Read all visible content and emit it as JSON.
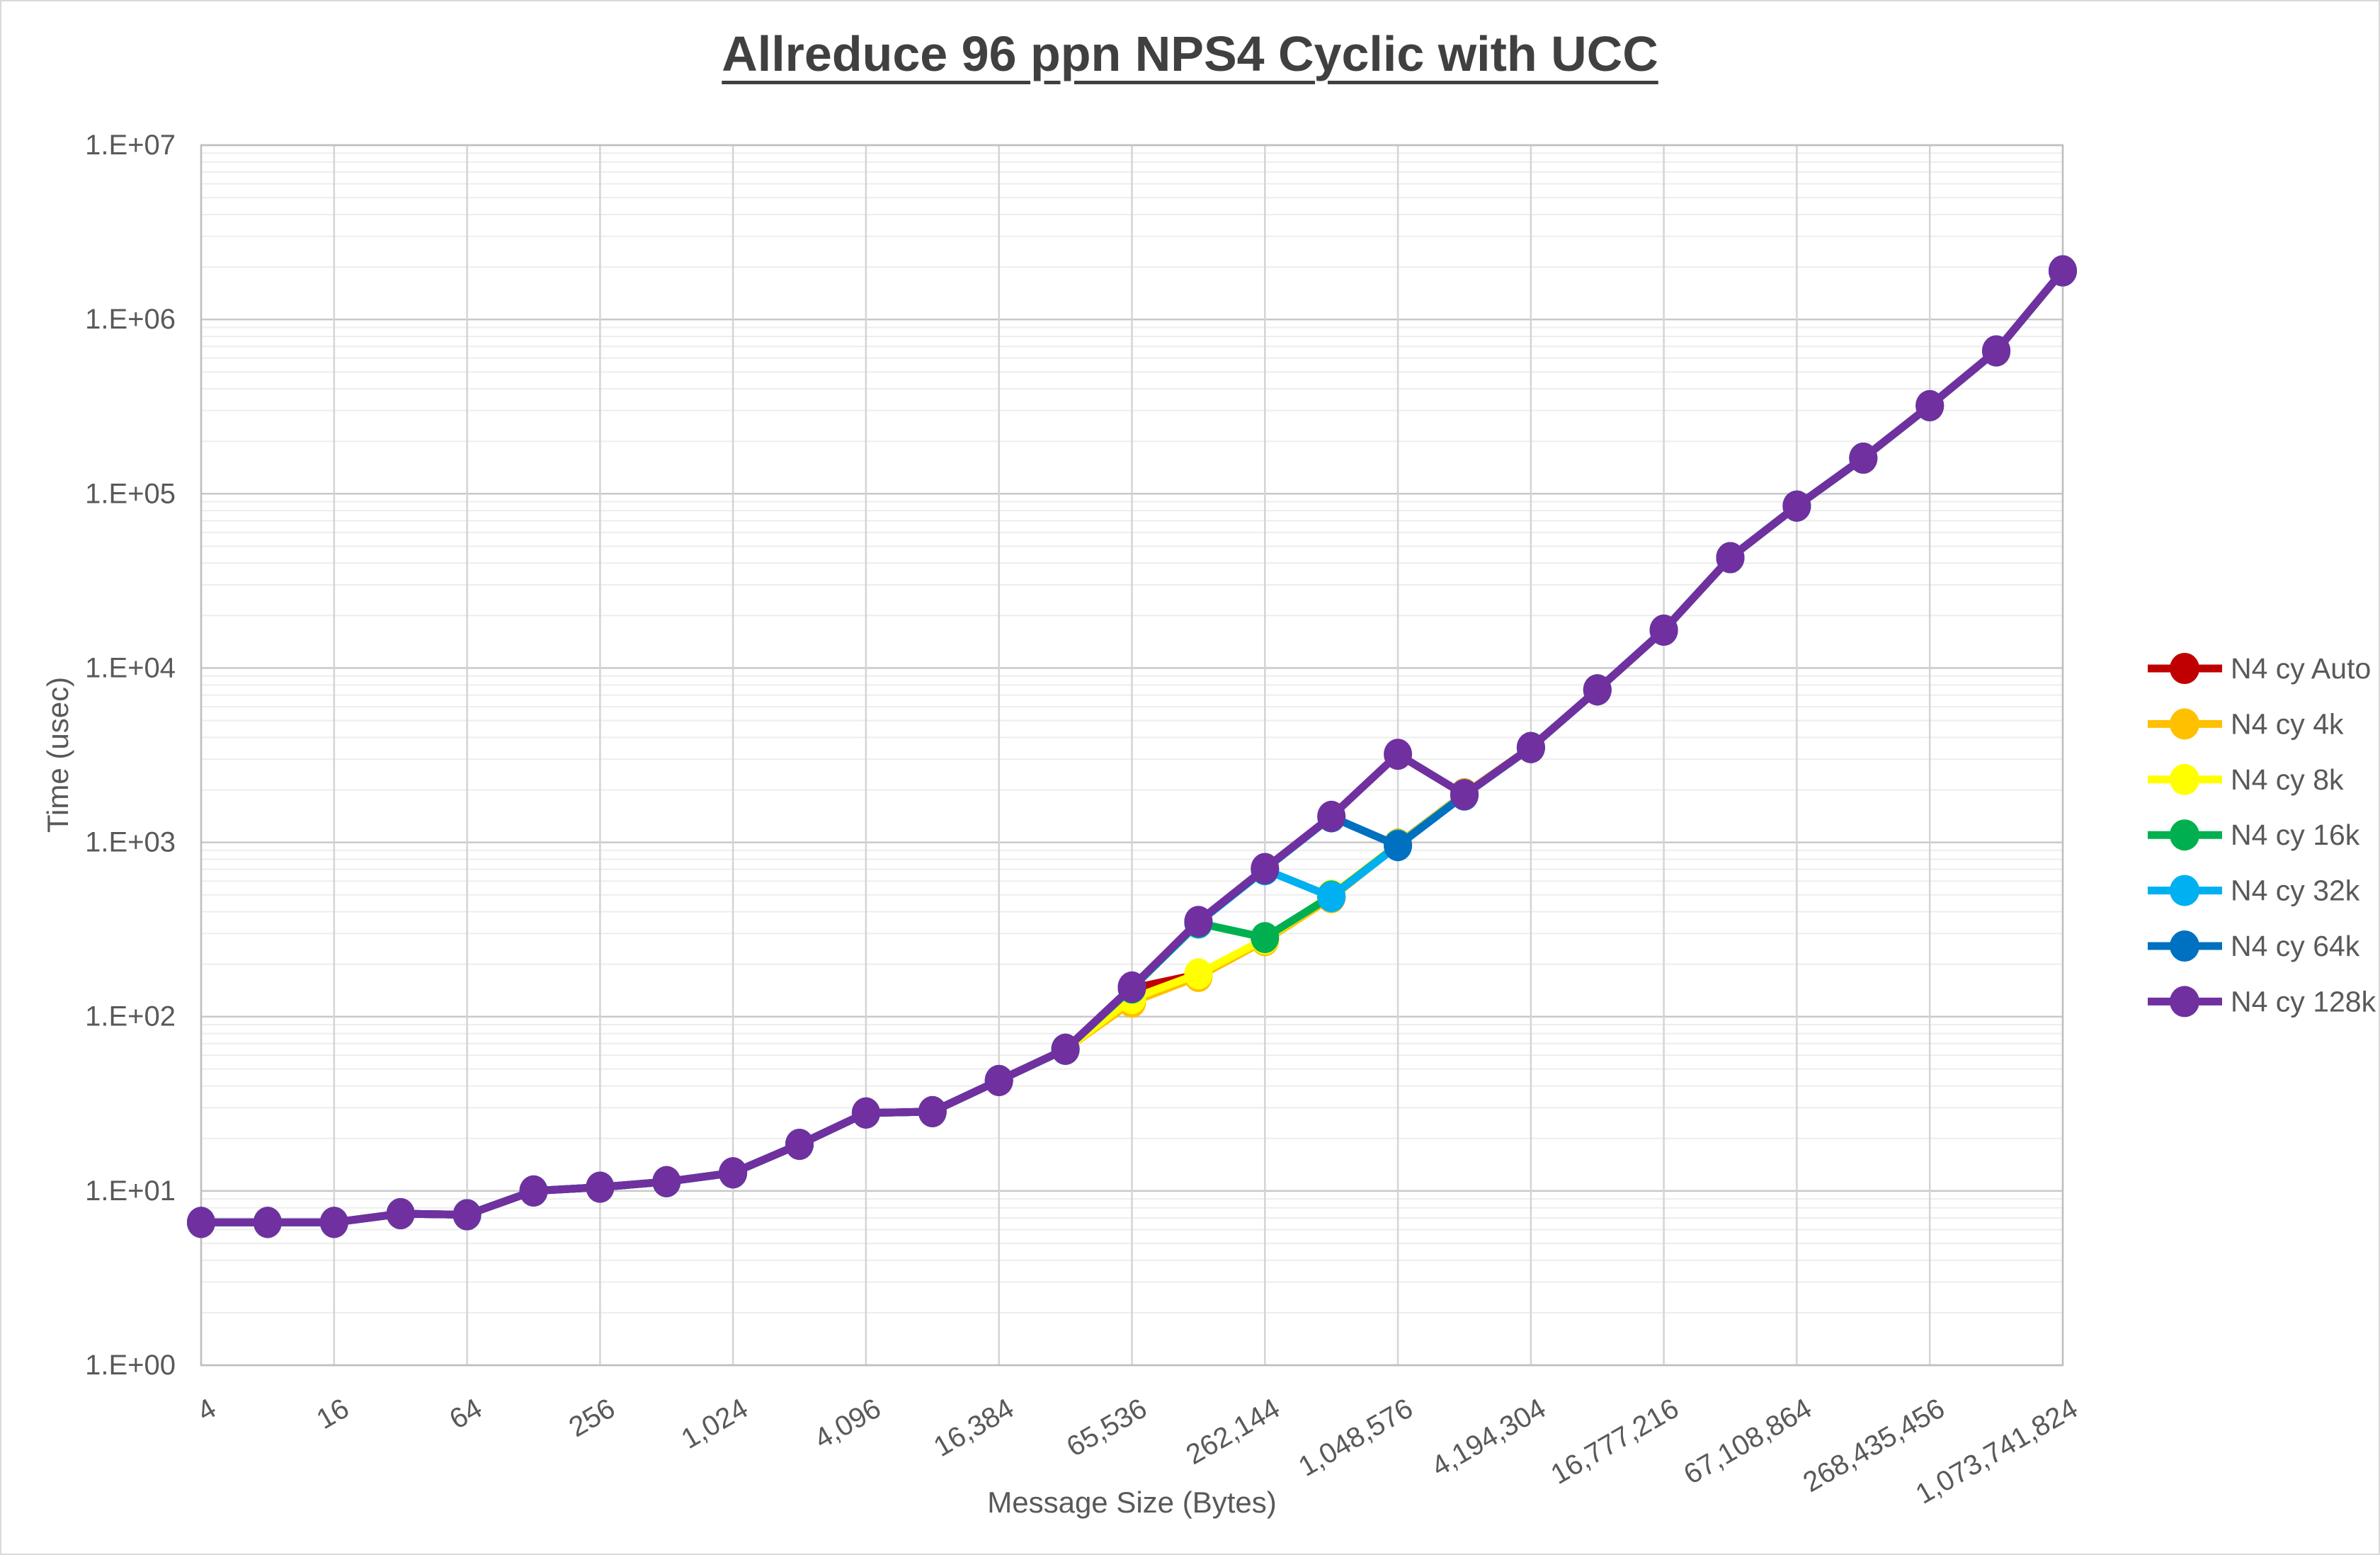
{
  "chart": {
    "title": "Allreduce 96 ppn NPS4 Cyclic with UCC",
    "x_axis_title": "Message Size (Bytes)",
    "y_axis_title": "Time (usec)"
  },
  "chart_data": {
    "type": "line",
    "title": "Allreduce 96 ppn NPS4 Cyclic with UCC",
    "xlabel": "Message Size (Bytes)",
    "ylabel": "Time (usec)",
    "x_scale": "log2",
    "y_scale": "log10",
    "xlim": [
      4,
      1073741824
    ],
    "ylim": [
      1,
      10000000
    ],
    "grid": "horizontal major+minor (log), vertical major at labeled ticks",
    "legend_position": "right",
    "marker": "circle",
    "y_tick_labels": [
      "1.E+00",
      "1.E+01",
      "1.E+02",
      "1.E+03",
      "1.E+04",
      "1.E+05",
      "1.E+06",
      "1.E+07"
    ],
    "x_tick_labels": [
      "4",
      "16",
      "64",
      "256",
      "1,024",
      "4,096",
      "16,384",
      "65,536",
      "262,144",
      "1,048,576",
      "4,194,304",
      "16,777,216",
      "67,108,864",
      "268,435,456",
      "1,073,741,824"
    ],
    "x": [
      4,
      8,
      16,
      32,
      64,
      128,
      256,
      512,
      1024,
      2048,
      4096,
      8192,
      16384,
      32768,
      65536,
      131072,
      262144,
      524288,
      1048576,
      2097152,
      4194304,
      8388608,
      16777216,
      33554432,
      67108864,
      134217728,
      268435456,
      536870912,
      1073741824
    ],
    "series": [
      {
        "name": "N4 cy Auto",
        "color": "#C00000",
        "values": [
          6.6,
          6.6,
          6.6,
          7.4,
          7.3,
          10,
          10.5,
          11.3,
          12.7,
          18.5,
          28,
          28.5,
          43,
          65,
          145,
          175,
          277,
          484,
          975,
          1900,
          3500,
          7500,
          16500,
          43000,
          85000,
          160000,
          320000,
          660000,
          1900000
        ]
      },
      {
        "name": "N4 cy 4k",
        "color": "#FFC000",
        "values": [
          6.6,
          6.6,
          6.6,
          7.4,
          7.3,
          10,
          10.5,
          11.3,
          12.7,
          18.5,
          28,
          28.5,
          43,
          65,
          121,
          170,
          273,
          481,
          968,
          1895,
          3500,
          7500,
          16500,
          43000,
          85000,
          160000,
          320000,
          660000,
          1900000
        ]
      },
      {
        "name": "N4 cy 8k",
        "color": "#FFFF00",
        "values": [
          6.6,
          6.6,
          6.6,
          7.4,
          7.3,
          10,
          10.5,
          11.3,
          12.7,
          18.5,
          28,
          28.5,
          43,
          65,
          127,
          176,
          279,
          497,
          972,
          1890,
          3500,
          7500,
          16500,
          43000,
          85000,
          160000,
          320000,
          660000,
          1900000
        ]
      },
      {
        "name": "N4 cy 16k",
        "color": "#00B050",
        "values": [
          6.6,
          6.6,
          6.6,
          7.4,
          7.3,
          10,
          10.5,
          11.3,
          12.7,
          18.5,
          28,
          28.5,
          43,
          65,
          146,
          344,
          284,
          492,
          965,
          1878,
          3500,
          7500,
          16500,
          43000,
          85000,
          160000,
          320000,
          660000,
          1900000
        ]
      },
      {
        "name": "N4 cy 32k",
        "color": "#00B0F0",
        "values": [
          6.6,
          6.6,
          6.6,
          7.4,
          7.3,
          10,
          10.5,
          11.3,
          12.7,
          18.5,
          28,
          28.5,
          43,
          65,
          147,
          347,
          697,
          488,
          960,
          1872,
          3500,
          7500,
          16500,
          43000,
          85000,
          160000,
          320000,
          660000,
          1900000
        ]
      },
      {
        "name": "N4 cy 64k",
        "color": "#0070C0",
        "values": [
          6.6,
          6.6,
          6.6,
          7.4,
          7.3,
          10,
          10.5,
          11.3,
          12.7,
          18.5,
          28,
          28.5,
          43,
          65,
          147,
          349,
          702,
          1400,
          958,
          1868,
          3500,
          7500,
          16500,
          43000,
          85000,
          160000,
          320000,
          660000,
          1900000
        ]
      },
      {
        "name": "N4 cy 128k",
        "color": "#7030A0",
        "values": [
          6.6,
          6.6,
          6.6,
          7.4,
          7.3,
          10,
          10.5,
          11.3,
          12.7,
          18.5,
          28,
          28.5,
          43,
          65,
          148,
          352,
          708,
          1410,
          3200,
          1880,
          3500,
          7500,
          16500,
          43000,
          85000,
          160000,
          320000,
          660000,
          1900000
        ]
      }
    ]
  }
}
